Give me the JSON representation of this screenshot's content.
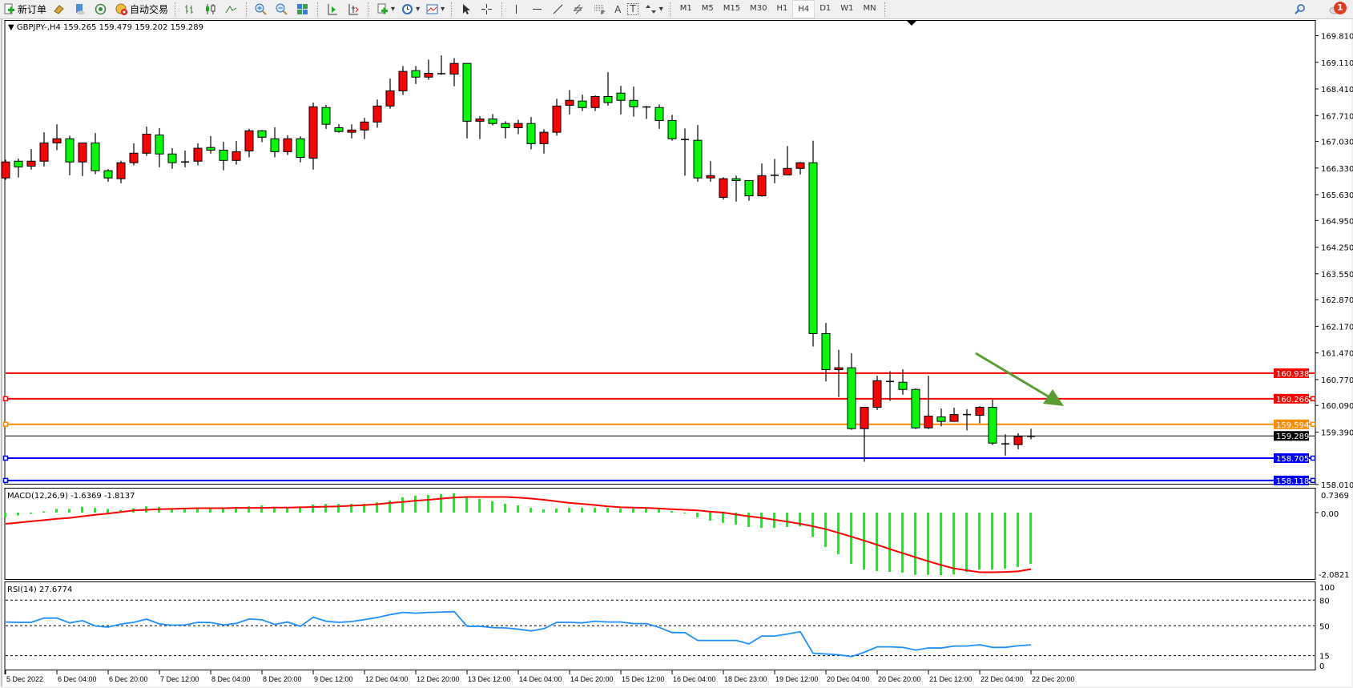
{
  "toolbar": {
    "new_order": "新订单",
    "auto_trading": "自动交易",
    "timeframes": [
      "M1",
      "M5",
      "M15",
      "M30",
      "H1",
      "H4",
      "D1",
      "W1",
      "MN"
    ],
    "active_timeframe": "H4",
    "text_tool": "A",
    "label_tool": "T",
    "notification_count": "1"
  },
  "chart": {
    "legend": "GBPJPY-,H4  159.265 159.479 159.202 159.289",
    "bull_color": "#ff0000",
    "bear_color": "#00ff00",
    "price_ticks": [
      "169.810",
      "169.110",
      "168.410",
      "167.710",
      "167.030",
      "166.330",
      "165.630",
      "164.950",
      "164.250",
      "163.550",
      "162.870",
      "162.170",
      "161.470",
      "160.770",
      "160.090",
      "159.390",
      "158.010"
    ],
    "lines": [
      {
        "price": "160.938",
        "color": "#ff0000"
      },
      {
        "price": "160.266",
        "color": "#ff0000"
      },
      {
        "price": "159.594",
        "color": "#ff8c00"
      },
      {
        "price": "158.705",
        "color": "#0000ff"
      },
      {
        "price": "158.118",
        "color": "#0000ff"
      }
    ],
    "bid": {
      "price": "159.289",
      "color": "#000000"
    },
    "arrow_color": "#5a9e32",
    "time_labels": [
      "5 Dec 2022",
      "6 Dec 04:00",
      "6 Dec 20:00",
      "7 Dec 12:00",
      "8 Dec 04:00",
      "8 Dec 20:00",
      "9 Dec 12:00",
      "12 Dec 04:00",
      "12 Dec 20:00",
      "13 Dec 12:00",
      "14 Dec 04:00",
      "14 Dec 20:00",
      "15 Dec 12:00",
      "16 Dec 04:00",
      "18 Dec 23:00",
      "19 Dec 12:00",
      "20 Dec 04:00",
      "20 Dec 20:00",
      "21 Dec 12:00",
      "22 Dec 04:00",
      "22 Dec 20:00"
    ]
  },
  "macd": {
    "legend": "MACD(12,26,9) -1.6369 -1.8137",
    "axis_labels": [
      "0.7369",
      "0.00",
      "-2.0821"
    ]
  },
  "rsi": {
    "legend": "RSI(14) 27.6774",
    "axis_labels": [
      "100",
      "80",
      "50",
      "15",
      "0"
    ],
    "levels": [
      80,
      50,
      15
    ]
  },
  "chart_data": [
    {
      "type": "candlestick",
      "symbol": "GBPJPY-",
      "timeframe": "H4",
      "ylim": [
        158.01,
        169.81
      ],
      "ohlc": [
        [
          166.07,
          166.55,
          166.02,
          166.49
        ],
        [
          166.51,
          166.58,
          166.08,
          166.36
        ],
        [
          166.38,
          166.83,
          166.29,
          166.51
        ],
        [
          166.51,
          167.27,
          166.37,
          166.99
        ],
        [
          166.99,
          167.48,
          166.8,
          167.1
        ],
        [
          167.1,
          167.18,
          166.14,
          166.49
        ],
        [
          166.49,
          166.99,
          166.12,
          166.99
        ],
        [
          166.99,
          167.25,
          166.17,
          166.26
        ],
        [
          166.26,
          166.3,
          165.97,
          166.07
        ],
        [
          166.05,
          166.52,
          165.93,
          166.47
        ],
        [
          166.47,
          166.98,
          166.4,
          166.72
        ],
        [
          166.72,
          167.42,
          166.65,
          167.22
        ],
        [
          167.2,
          167.38,
          166.35,
          166.7
        ],
        [
          166.7,
          166.85,
          166.31,
          166.47
        ],
        [
          166.47,
          166.79,
          166.35,
          166.51
        ],
        [
          166.51,
          166.98,
          166.4,
          166.85
        ],
        [
          166.87,
          167.17,
          166.71,
          166.8
        ],
        [
          166.8,
          167.02,
          166.27,
          166.53
        ],
        [
          166.53,
          167.04,
          166.42,
          166.76
        ],
        [
          166.78,
          167.36,
          166.61,
          167.31
        ],
        [
          167.31,
          167.33,
          167.01,
          167.14
        ],
        [
          167.1,
          167.4,
          166.61,
          166.76
        ],
        [
          166.76,
          167.19,
          166.67,
          167.1
        ],
        [
          167.1,
          167.16,
          166.48,
          166.61
        ],
        [
          166.59,
          168.05,
          166.29,
          167.94
        ],
        [
          167.92,
          167.99,
          167.36,
          167.48
        ],
        [
          167.39,
          167.48,
          167.26,
          167.29
        ],
        [
          167.27,
          167.48,
          167.11,
          167.33
        ],
        [
          167.33,
          167.65,
          167.09,
          167.54
        ],
        [
          167.54,
          168.13,
          167.39,
          167.96
        ],
        [
          167.96,
          168.68,
          167.89,
          168.36
        ],
        [
          168.36,
          169.01,
          168.25,
          168.87
        ],
        [
          168.89,
          169.01,
          168.54,
          168.72
        ],
        [
          168.72,
          169.18,
          168.65,
          168.82
        ],
        [
          168.81,
          169.29,
          168.78,
          168.81
        ],
        [
          168.8,
          169.22,
          168.48,
          169.08
        ],
        [
          169.08,
          169.08,
          167.11,
          167.56
        ],
        [
          167.56,
          167.69,
          167.09,
          167.62
        ],
        [
          167.62,
          167.75,
          167.45,
          167.5
        ],
        [
          167.5,
          167.56,
          167.11,
          167.39
        ],
        [
          167.39,
          167.6,
          167.22,
          167.5
        ],
        [
          167.5,
          167.67,
          166.82,
          166.97
        ],
        [
          166.97,
          167.35,
          166.71,
          167.27
        ],
        [
          167.27,
          168.15,
          167.18,
          167.96
        ],
        [
          167.98,
          168.38,
          167.74,
          168.11
        ],
        [
          168.09,
          168.26,
          167.83,
          167.92
        ],
        [
          167.92,
          168.24,
          167.83,
          168.21
        ],
        [
          168.21,
          168.85,
          167.97,
          168.05
        ],
        [
          168.3,
          168.49,
          167.74,
          168.11
        ],
        [
          168.11,
          168.47,
          167.68,
          167.94
        ],
        [
          167.94,
          167.96,
          167.62,
          167.93
        ],
        [
          167.92,
          168.0,
          167.36,
          167.58
        ],
        [
          167.58,
          167.73,
          167.05,
          167.1
        ],
        [
          167.1,
          167.37,
          166.13,
          167.06
        ],
        [
          167.06,
          167.46,
          165.97,
          166.07
        ],
        [
          166.07,
          166.51,
          165.97,
          166.13
        ],
        [
          165.56,
          166.09,
          165.5,
          166.05
        ],
        [
          166.05,
          166.13,
          165.45,
          166.0
        ],
        [
          166.0,
          166.0,
          165.47,
          165.6
        ],
        [
          165.6,
          166.45,
          165.58,
          166.13
        ],
        [
          166.14,
          166.57,
          165.93,
          166.14
        ],
        [
          166.15,
          166.91,
          166.15,
          166.32
        ],
        [
          166.32,
          166.49,
          166.16,
          166.47
        ],
        [
          166.47,
          167.05,
          161.64,
          161.98
        ],
        [
          161.98,
          162.26,
          160.72,
          161.03
        ],
        [
          161.03,
          161.55,
          160.31,
          161.08
        ],
        [
          161.08,
          161.46,
          159.45,
          159.48
        ],
        [
          159.48,
          160.04,
          158.61,
          160.04
        ],
        [
          160.04,
          160.87,
          159.97,
          160.74
        ],
        [
          160.74,
          160.99,
          160.21,
          160.7
        ],
        [
          160.7,
          161.04,
          160.37,
          160.51
        ],
        [
          160.51,
          160.54,
          159.47,
          159.5
        ],
        [
          159.5,
          160.87,
          159.47,
          159.81
        ],
        [
          159.79,
          160.01,
          159.54,
          159.67
        ],
        [
          159.67,
          160.03,
          159.67,
          159.85
        ],
        [
          159.85,
          159.99,
          159.43,
          159.85
        ],
        [
          159.83,
          160.07,
          159.62,
          160.04
        ],
        [
          160.04,
          160.24,
          159.05,
          159.1
        ],
        [
          159.1,
          159.33,
          158.77,
          159.06
        ],
        [
          159.06,
          159.36,
          158.94,
          159.27
        ],
        [
          159.265,
          159.479,
          159.202,
          159.289
        ]
      ]
    },
    {
      "type": "bar",
      "indicator": "MACD(12,26,9)",
      "ylim": [
        -2.0821,
        0.7369
      ],
      "macd": [
        -0.15,
        -0.09,
        -0.04,
        0.04,
        0.12,
        0.12,
        0.18,
        0.15,
        0.12,
        0.09,
        0.14,
        0.2,
        0.18,
        0.14,
        0.14,
        0.14,
        0.14,
        0.14,
        0.18,
        0.2,
        0.23,
        0.18,
        0.16,
        0.16,
        0.26,
        0.28,
        0.28,
        0.28,
        0.28,
        0.33,
        0.38,
        0.49,
        0.54,
        0.56,
        0.59,
        0.62,
        0.51,
        0.44,
        0.36,
        0.28,
        0.23,
        0.15,
        0.1,
        0.13,
        0.15,
        0.15,
        0.15,
        0.15,
        0.13,
        0.13,
        0.13,
        0.13,
        0.05,
        -0.02,
        -0.15,
        -0.26,
        -0.33,
        -0.38,
        -0.46,
        -0.49,
        -0.49,
        -0.46,
        -0.44,
        -0.77,
        -1.1,
        -1.33,
        -1.64,
        -1.82,
        -1.87,
        -1.9,
        -1.92,
        -1.99,
        -1.99,
        -2.0,
        -1.98,
        -1.9,
        -1.82,
        -1.82,
        -1.79,
        -1.74,
        -1.64
      ],
      "signal": [
        -0.36,
        -0.32,
        -0.28,
        -0.24,
        -0.2,
        -0.17,
        -0.12,
        -0.07,
        -0.03,
        0.02,
        0.07,
        0.09,
        0.11,
        0.12,
        0.13,
        0.14,
        0.14,
        0.14,
        0.15,
        0.15,
        0.15,
        0.16,
        0.16,
        0.17,
        0.18,
        0.19,
        0.2,
        0.22,
        0.24,
        0.27,
        0.31,
        0.34,
        0.38,
        0.41,
        0.45,
        0.48,
        0.5,
        0.5,
        0.5,
        0.5,
        0.48,
        0.45,
        0.41,
        0.36,
        0.31,
        0.28,
        0.24,
        0.2,
        0.17,
        0.16,
        0.15,
        0.13,
        0.11,
        0.09,
        0.07,
        0.03,
        0.0,
        -0.06,
        -0.12,
        -0.17,
        -0.23,
        -0.29,
        -0.36,
        -0.44,
        -0.53,
        -0.65,
        -0.77,
        -0.9,
        -1.03,
        -1.17,
        -1.3,
        -1.43,
        -1.56,
        -1.68,
        -1.79,
        -1.85,
        -1.91,
        -1.91,
        -1.9,
        -1.88,
        -1.81
      ],
      "histogram_color": "#00ff00",
      "signal_color": "#ff0000"
    },
    {
      "type": "line",
      "indicator": "RSI(14)",
      "ylim": [
        0,
        100
      ],
      "values": [
        54.4,
        54,
        54,
        59,
        59,
        53.4,
        56,
        49.7,
        48.4,
        52,
        54,
        57.8,
        52.2,
        50.6,
        51,
        54,
        53.8,
        51,
        52.8,
        58,
        57,
        51.6,
        54.4,
        49.4,
        60,
        55.3,
        54,
        55,
        57.2,
        59.7,
        63,
        65.6,
        64.7,
        65.6,
        66,
        66.6,
        49.4,
        49.4,
        47.8,
        47.5,
        46,
        44,
        46.6,
        54,
        54,
        53.4,
        55.3,
        54.4,
        54.4,
        52.5,
        52.5,
        48,
        42,
        42,
        32.8,
        32.8,
        32.8,
        32.8,
        28.8,
        38,
        38,
        40.3,
        43,
        17.8,
        17,
        16,
        14,
        19,
        25.3,
        25.3,
        24.7,
        21.6,
        24,
        24,
        26.3,
        26.3,
        27.8,
        24.7,
        24.7,
        26.6,
        27.68
      ],
      "color": "#1e90ff"
    }
  ]
}
